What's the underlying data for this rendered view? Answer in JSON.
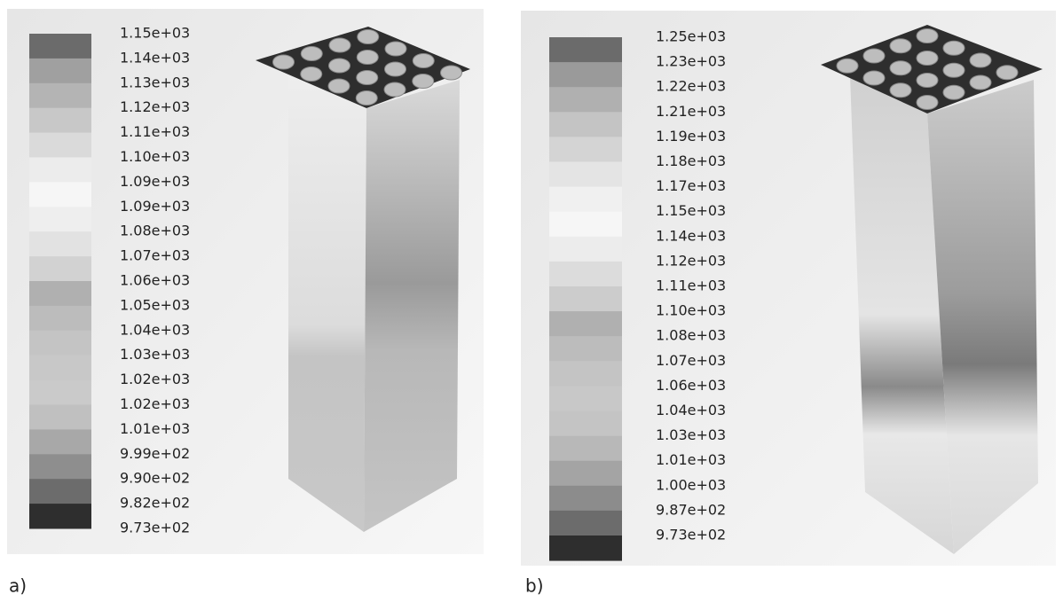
{
  "panels": [
    {
      "caption": "a)",
      "legend_labels": [
        "1.15e+03",
        "1.14e+03",
        "1.13e+03",
        "1.12e+03",
        "1.11e+03",
        "1.10e+03",
        "1.09e+03",
        "1.09e+03",
        "1.08e+03",
        "1.07e+03",
        "1.06e+03",
        "1.05e+03",
        "1.04e+03",
        "1.03e+03",
        "1.02e+03",
        "1.02e+03",
        "1.01e+03",
        "9.99e+02",
        "9.90e+02",
        "9.82e+02",
        "9.73e+02"
      ]
    },
    {
      "caption": "b)",
      "legend_labels": [
        "1.25e+03",
        "1.23e+03",
        "1.22e+03",
        "1.21e+03",
        "1.19e+03",
        "1.18e+03",
        "1.17e+03",
        "1.15e+03",
        "1.14e+03",
        "1.12e+03",
        "1.11e+03",
        "1.10e+03",
        "1.08e+03",
        "1.07e+03",
        "1.06e+03",
        "1.04e+03",
        "1.03e+03",
        "1.01e+03",
        "1.00e+03",
        "9.87e+02",
        "9.73e+02"
      ]
    }
  ]
}
